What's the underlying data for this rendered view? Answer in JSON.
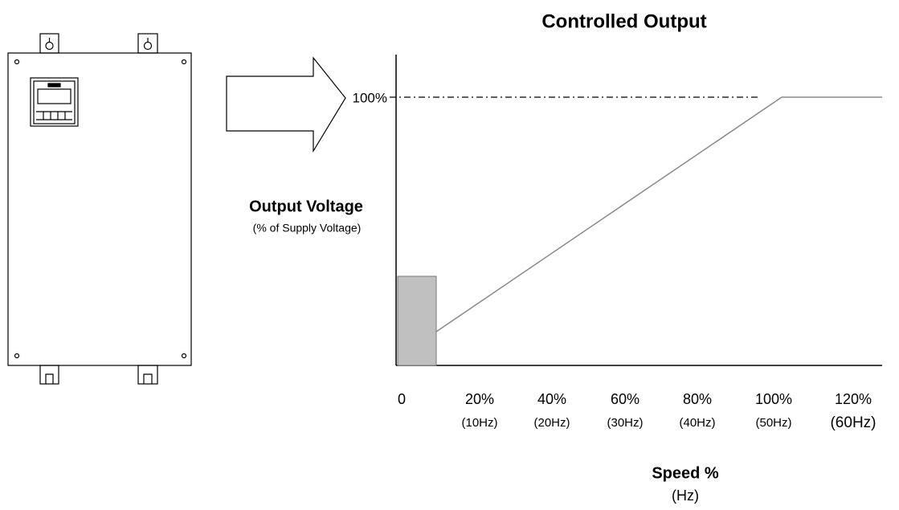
{
  "title": "Controlled Output",
  "y_axis": {
    "label": "Output Voltage",
    "sublabel": "(% of Supply Voltage)",
    "tick": "100%"
  },
  "x_axis": {
    "label": "Speed %",
    "sublabel": "(Hz)",
    "ticks": [
      {
        "label": "0"
      },
      {
        "label": "20%",
        "sublabel": "(10Hz)"
      },
      {
        "label": "40%",
        "sublabel": "(20Hz)"
      },
      {
        "label": "60%",
        "sublabel": "(30Hz)"
      },
      {
        "label": "80%",
        "sublabel": "(40Hz)"
      },
      {
        "label": "100%",
        "sublabel": "(50Hz)"
      },
      {
        "label": "120%",
        "sublabel": "(60Hz)"
      }
    ]
  }
}
